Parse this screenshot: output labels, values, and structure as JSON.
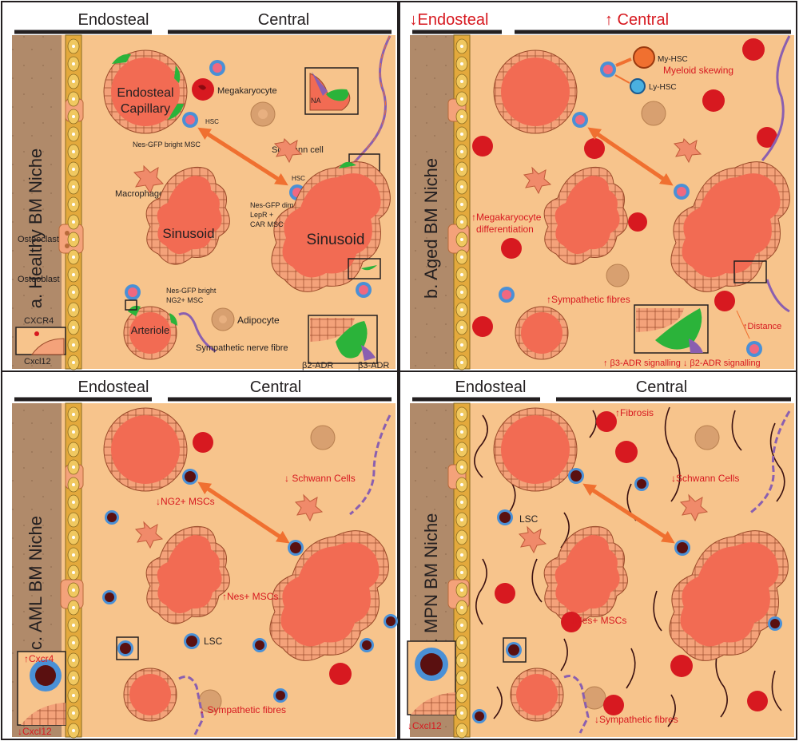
{
  "colors": {
    "background": "#f7c48c",
    "bone": "#b08a6a",
    "vessel": "#f26b53",
    "endothelium": "#f4a27a",
    "msc_green": "#2bb33a",
    "nerve_purple": "#8a5fb0",
    "hsc_blue": "#4a90d6",
    "rbc_red": "#d71920",
    "annotation_red": "#d71920",
    "arrow_orange": "#f07030",
    "fibre_dark": "#3a1010",
    "frame": "#231f20"
  },
  "panels": {
    "a": {
      "title": "a. Healthy BM Niche",
      "endosteal": "Endosteal",
      "central": "Central",
      "labels": {
        "endosteal_capillary_1": "Endosteal",
        "endosteal_capillary_2": "Capillary",
        "megakaryocyte": "Megakaryocyte",
        "hsc_top": "HSC",
        "nes_bright_msc": "Nes-GFP bright MSC",
        "na": "NA",
        "schwann": "Schwann cell",
        "macrophage": "Macrophage",
        "hsc_mid": "HSC",
        "nes_dim_1": "Nes-GFP dim",
        "nes_dim_2": "LepR +",
        "nes_dim_3": "CAR MSC",
        "sinusoid_small": "Sinusoid",
        "sinusoid_large": "Sinusoid",
        "osteoclast": "Osteoclast",
        "osteoblast": "Osteoblast",
        "ng2_1": "Nes-GFP bright",
        "ng2_2": "NG2+ MSC",
        "arteriole": "Arteriole",
        "adipocyte": "Adipocyte",
        "sympathetic": "Sympathetic nerve fibre",
        "cxcr4": "CXCR4",
        "cxcl12": "Cxcl12",
        "b2adr": "β2-ADR",
        "b3adr": "β3-ADR"
      }
    },
    "b": {
      "title": "b. Aged BM Niche",
      "endosteal": "↓Endosteal",
      "central": "↑ Central",
      "labels": {
        "my_hsc": "My-HSC",
        "ly_hsc": "Ly-HSC",
        "myeloid": "Myeloid skewing",
        "mk_diff_1": "↑Megakaryocyte",
        "mk_diff_2": "differentiation",
        "symp": "↑Sympathetic fibres",
        "distance": "↑Distance",
        "signalling": "↑ β3-ADR signalling ↓ β2-ADR signalling"
      }
    },
    "c": {
      "title": "c. AML BM Niche",
      "endosteal": "Endosteal",
      "central": "Central",
      "labels": {
        "schwann": "↓ Schwann Cells",
        "ng2": "↓NG2+ MSCs",
        "nes": "↑Nes+ MSCs",
        "lsc": "LSC",
        "cxcr4": "↑Cxcr4",
        "cxcl12": "↓Cxcl12",
        "symp": "↓ Sympathetic fibres"
      }
    },
    "d": {
      "title": "d. MPN BM Niche",
      "endosteal": "Endosteal",
      "central": "Central",
      "labels": {
        "fibrosis": "↑Fibrosis",
        "schwann": "↓Schwann Cells",
        "lsc": "LSC",
        "nes": "↓Nes+ MSCs",
        "cxcl12": "↓Cxcl12",
        "symp": "↓Sympathetic fibres"
      }
    }
  }
}
